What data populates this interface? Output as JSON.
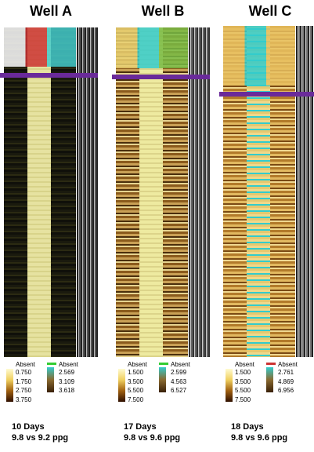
{
  "wells": [
    {
      "title": "Well A",
      "legend_left": {
        "absent": "Absent",
        "values": [
          "0.750",
          "1.750",
          "2.750",
          "3.750"
        ]
      },
      "legend_right": {
        "absent": "Absent",
        "values": [
          "2.569",
          "3.109",
          "3.618"
        ]
      },
      "caption": [
        "10 Days",
        "9.8 vs 9.2 ppg"
      ]
    },
    {
      "title": "Well B",
      "legend_left": {
        "absent": "Absent",
        "values": [
          "1.500",
          "3.500",
          "5.500",
          "7.500"
        ]
      },
      "legend_right": {
        "absent": "Absent",
        "values": [
          "2.599",
          "4.563",
          "6.527"
        ]
      },
      "caption": [
        "17 Days",
        "9.8 vs 9.6 ppg"
      ]
    },
    {
      "title": "Well C",
      "legend_left": {
        "absent": "Absent",
        "values": [
          "1.500",
          "3.500",
          "5.500",
          "7.500"
        ]
      },
      "legend_right": {
        "absent": "Absent",
        "values": [
          "2.761",
          "4.869",
          "6.956"
        ]
      },
      "caption": [
        "18 Days",
        "9.8 vs 9.6 ppg"
      ]
    }
  ]
}
